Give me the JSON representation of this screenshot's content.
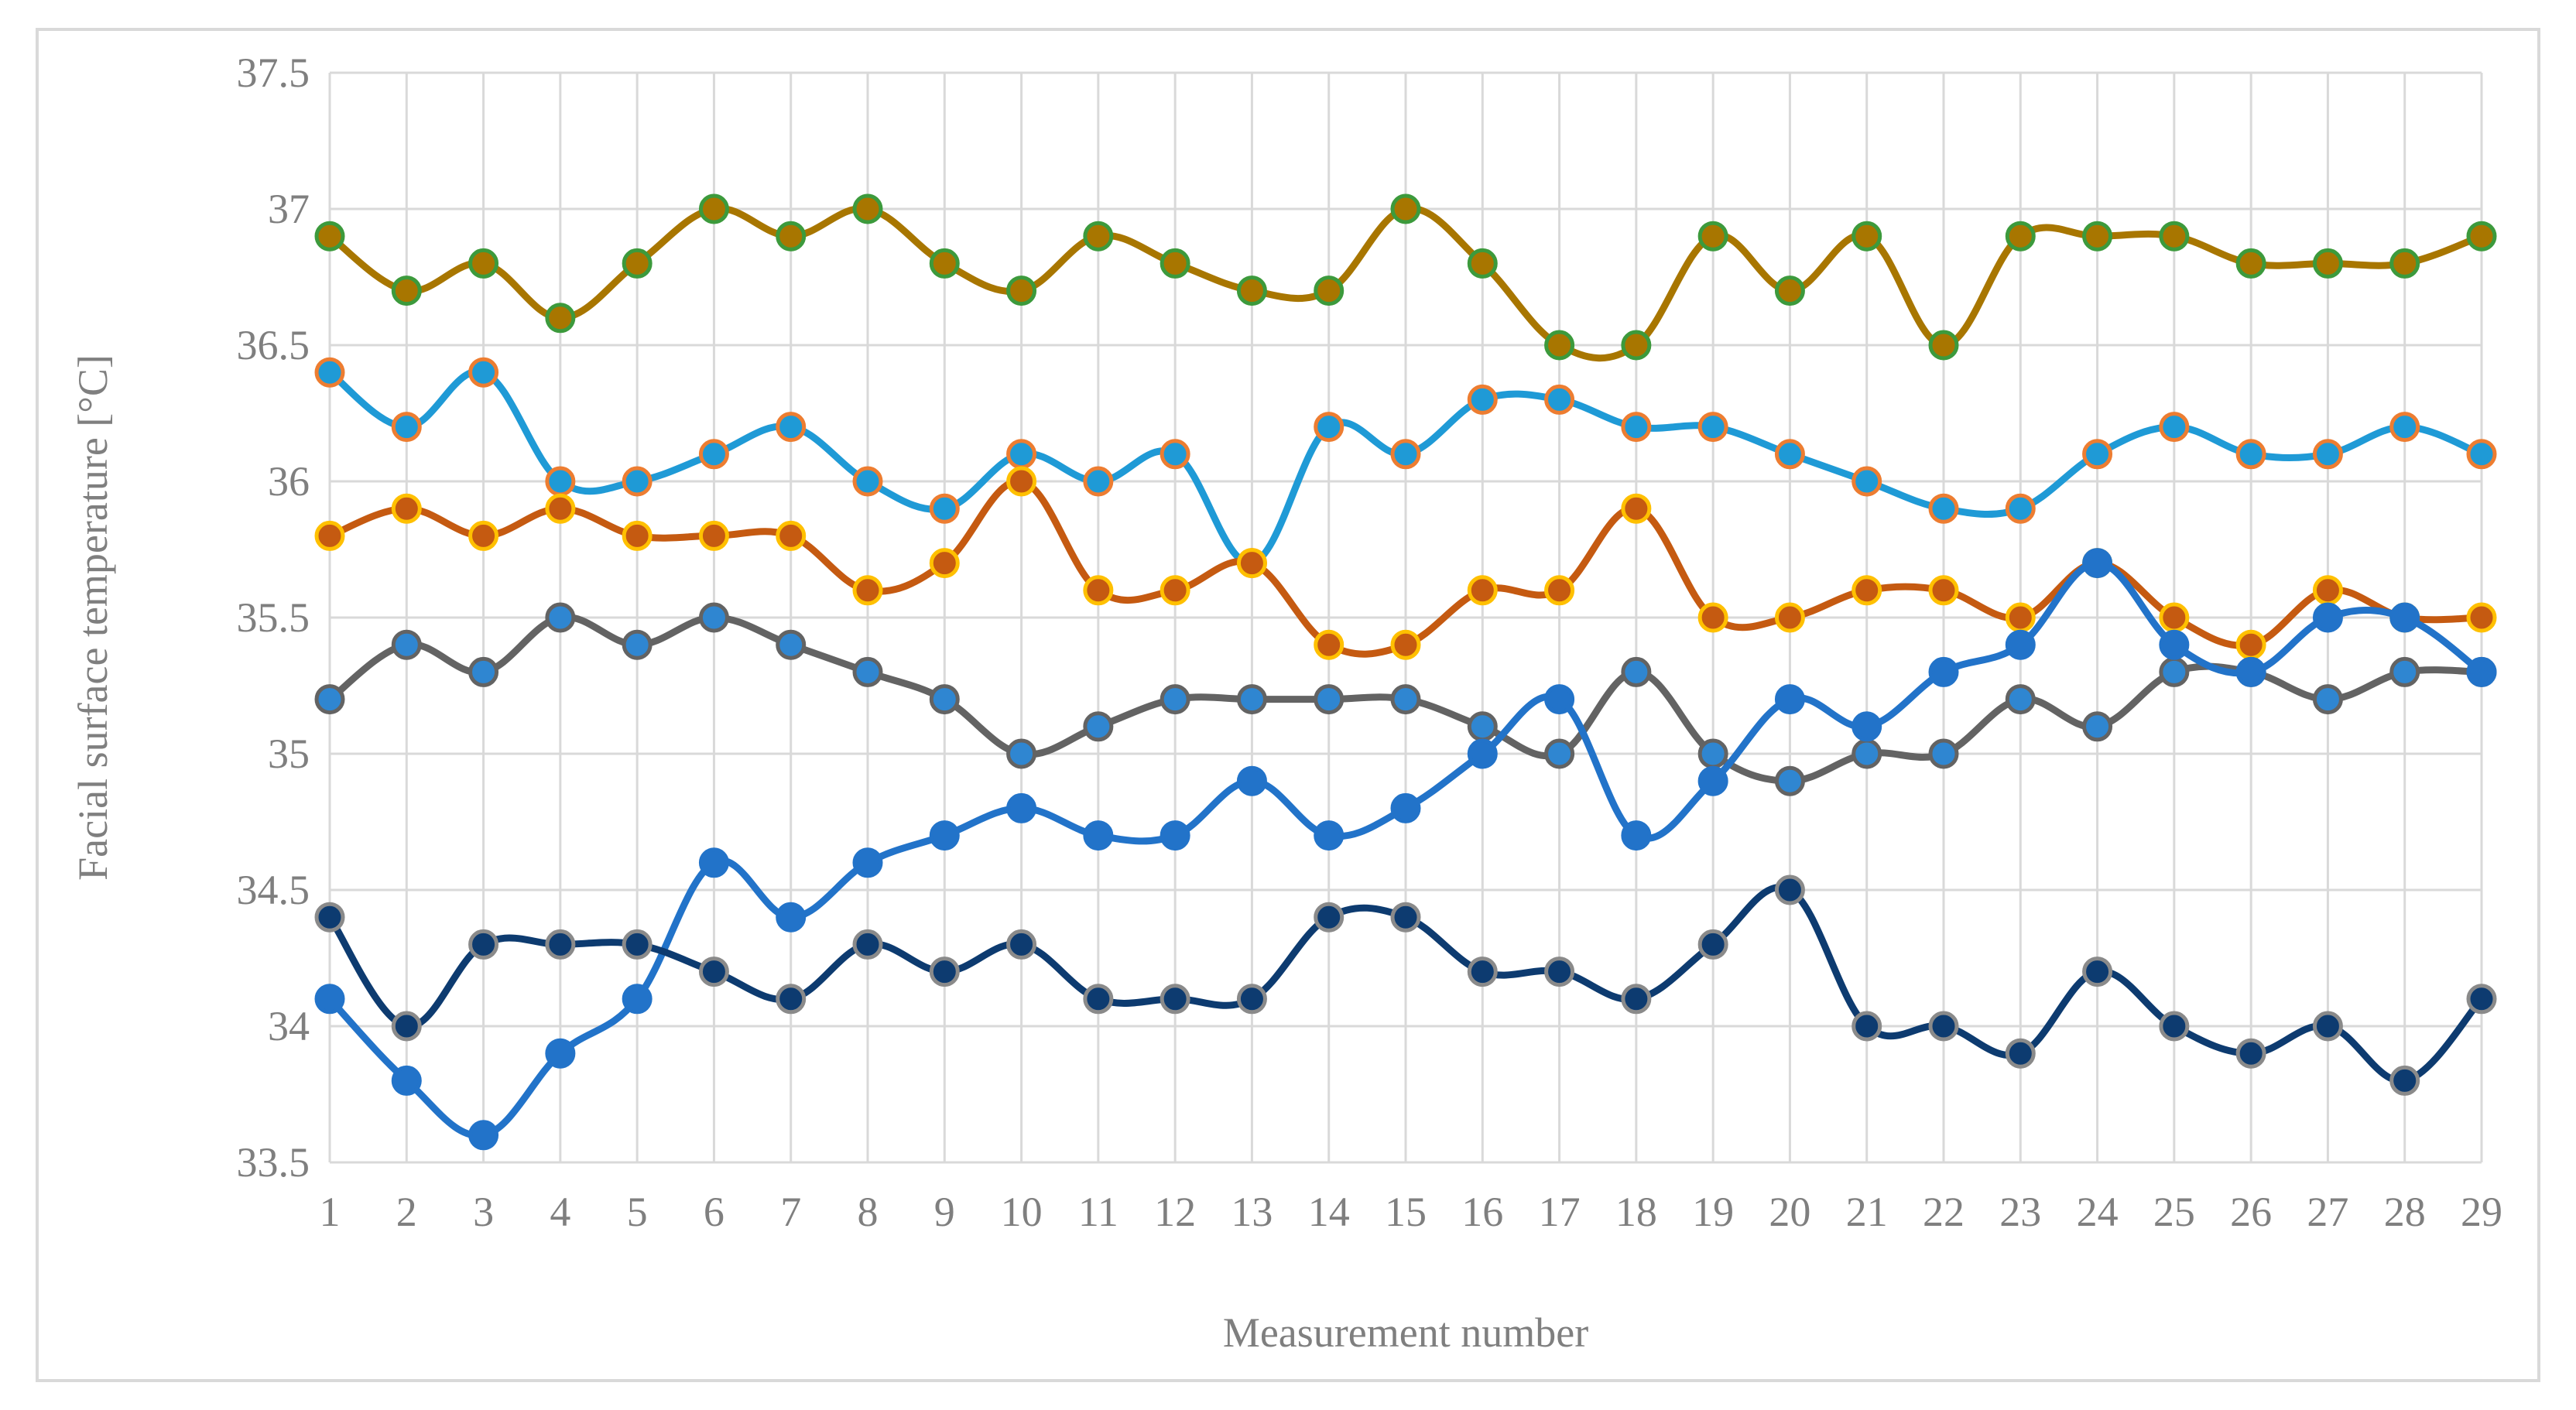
{
  "chart_data": {
    "type": "line",
    "title": "",
    "xlabel": "Measurement number",
    "ylabel": "Facial surface temperature [°C]",
    "ylim": [
      33.5,
      37.5
    ],
    "yticks": [
      "33.5",
      "34",
      "34.5",
      "35",
      "35.5",
      "36",
      "36.5",
      "37",
      "37.5"
    ],
    "categories": [
      "1",
      "2",
      "3",
      "4",
      "5",
      "6",
      "7",
      "8",
      "9",
      "10",
      "11",
      "12",
      "13",
      "14",
      "15",
      "16",
      "17",
      "18",
      "19",
      "20",
      "21",
      "22",
      "23",
      "24",
      "25",
      "26",
      "27",
      "28",
      "29"
    ],
    "grid": true,
    "legend": "none",
    "series": [
      {
        "color": "#a87600",
        "marker_fill": "#a87600",
        "marker_edge": "#3c9a3c",
        "values": [
          36.9,
          36.7,
          36.8,
          36.6,
          36.8,
          37.0,
          36.9,
          37.0,
          36.8,
          36.7,
          36.9,
          36.8,
          36.7,
          36.7,
          37.0,
          36.8,
          36.5,
          36.5,
          36.9,
          36.7,
          36.9,
          36.5,
          36.9,
          36.9,
          36.9,
          36.8,
          36.8,
          36.8,
          36.9
        ]
      },
      {
        "color": "#1f9ad6",
        "marker_fill": "#1f9ad6",
        "marker_edge": "#ed7d31",
        "values": [
          36.4,
          36.2,
          36.4,
          36.0,
          36.0,
          36.1,
          36.2,
          36.0,
          35.9,
          36.1,
          36.0,
          36.1,
          35.7,
          36.2,
          36.1,
          36.3,
          36.3,
          36.2,
          36.2,
          36.1,
          36.0,
          35.9,
          35.9,
          36.1,
          36.2,
          36.1,
          36.1,
          36.2,
          36.1
        ]
      },
      {
        "color": "#c55a11",
        "marker_fill": "#c55a11",
        "marker_edge": "#ffc000",
        "values": [
          35.8,
          35.9,
          35.8,
          35.9,
          35.8,
          35.8,
          35.8,
          35.6,
          35.7,
          36.0,
          35.6,
          35.6,
          35.7,
          35.4,
          35.4,
          35.6,
          35.6,
          35.9,
          35.5,
          35.5,
          35.6,
          35.6,
          35.5,
          35.7,
          35.5,
          35.4,
          35.6,
          35.5,
          35.5
        ]
      },
      {
        "color": "#636363",
        "marker_fill": "#2f86d1",
        "marker_edge": "#636363",
        "values": [
          35.2,
          35.4,
          35.3,
          35.5,
          35.4,
          35.5,
          35.4,
          35.3,
          35.2,
          35.0,
          35.1,
          35.2,
          35.2,
          35.2,
          35.2,
          35.1,
          35.0,
          35.3,
          35.0,
          34.9,
          35.0,
          35.0,
          35.2,
          35.1,
          35.3,
          35.3,
          35.2,
          35.3,
          35.3
        ]
      },
      {
        "color": "#2273c9",
        "marker_fill": "#2273c9",
        "marker_edge": "#2273c9",
        "values": [
          34.1,
          33.8,
          33.6,
          33.9,
          34.1,
          34.6,
          34.4,
          34.6,
          34.7,
          34.8,
          34.7,
          34.7,
          34.9,
          34.7,
          34.8,
          35.0,
          35.2,
          34.7,
          34.9,
          35.2,
          35.1,
          35.3,
          35.4,
          35.7,
          35.4,
          35.3,
          35.5,
          35.5,
          35.3
        ]
      },
      {
        "color": "#0d3b70",
        "marker_fill": "#0d3b70",
        "marker_edge": "#8a8a8a",
        "values": [
          34.4,
          34.0,
          34.3,
          34.3,
          34.3,
          34.2,
          34.1,
          34.3,
          34.2,
          34.3,
          34.1,
          34.1,
          34.1,
          34.4,
          34.4,
          34.2,
          34.2,
          34.1,
          34.3,
          34.5,
          34.0,
          34.0,
          33.9,
          34.2,
          34.0,
          33.9,
          34.0,
          33.8,
          34.1
        ]
      }
    ]
  }
}
